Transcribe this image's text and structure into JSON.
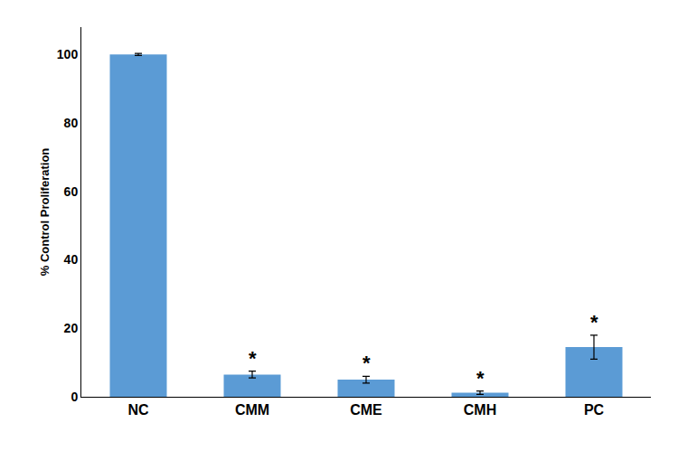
{
  "chart_data": {
    "type": "bar",
    "ylabel": "% Control Proliferation",
    "categories": [
      "NC",
      "CMM",
      "CME",
      "CMH",
      "PC"
    ],
    "values": [
      100,
      6.5,
      5.0,
      1.2,
      14.5
    ],
    "errors": [
      0.3,
      1.0,
      1.0,
      0.5,
      3.5
    ],
    "color": "#5B9BD5",
    "ylim": [
      0,
      108
    ],
    "yticks": [
      0,
      20,
      40,
      60,
      80,
      100
    ],
    "grid": false,
    "annotations": [
      {
        "category": "CMM",
        "text": "*"
      },
      {
        "category": "CME",
        "text": "*"
      },
      {
        "category": "CMH",
        "text": "*"
      },
      {
        "category": "PC",
        "text": "*"
      }
    ]
  }
}
